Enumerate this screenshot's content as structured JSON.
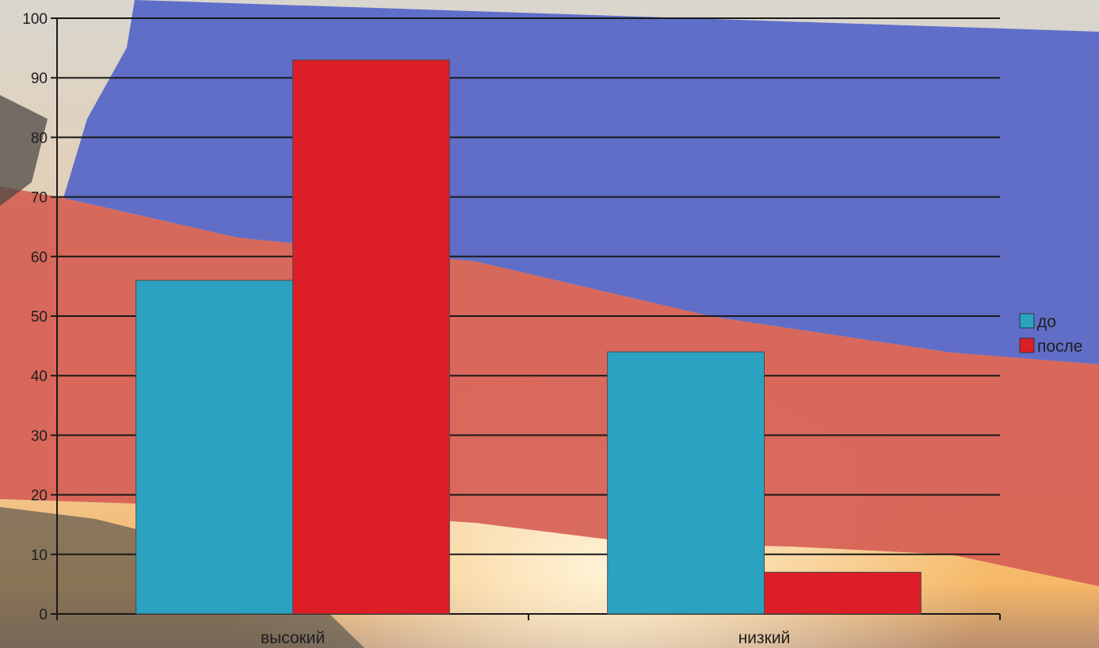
{
  "chart_data": {
    "type": "bar",
    "categories": [
      "высокий",
      "низкий"
    ],
    "series": [
      {
        "name": "до",
        "values": [
          56,
          44
        ],
        "color": "#2aa2c0"
      },
      {
        "name": "после",
        "values": [
          93,
          7
        ],
        "color": "#dc1e26"
      }
    ],
    "ylim": [
      0,
      100
    ],
    "yticks": [
      0,
      10,
      20,
      30,
      40,
      50,
      60,
      70,
      80,
      90,
      100
    ],
    "grid": true,
    "legend": "right"
  },
  "background": {
    "description_icon": "russian-flag-photo",
    "colors": {
      "white": "#ece7de",
      "blue": "#5566c8",
      "red": "#d95a4e"
    }
  }
}
